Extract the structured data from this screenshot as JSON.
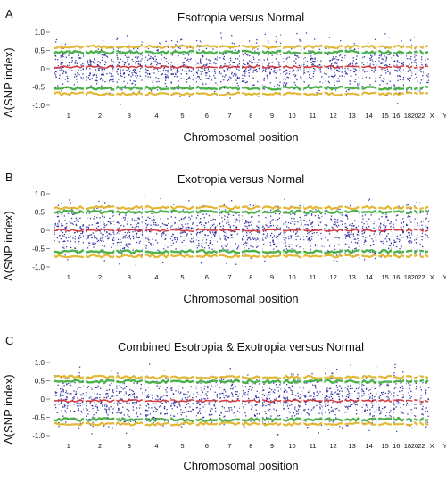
{
  "chart_data": [
    {
      "type": "scatter",
      "panel_label": "A",
      "title": "Esotropia versus Normal",
      "xlabel": "Chromosomal position",
      "ylabel": "Δ(SNP index)",
      "ylim": [
        -1.0,
        1.0
      ],
      "yticks": [
        "1.0",
        "0.5",
        "0",
        "-0.5",
        "-1.0"
      ],
      "x_tick_labels": [
        "1",
        "2",
        "3",
        "4",
        "5",
        "6",
        "7",
        "8",
        "9",
        "10",
        "11",
        "12",
        "13",
        "14",
        "15",
        "16",
        "18",
        "20",
        "22",
        "X",
        "Y"
      ],
      "series": [
        {
          "name": "",
          "color": "#1a1a9a",
          "description": "SNP Δ index points"
        },
        {
          "name": "",
          "color": "#d42a2a",
          "description": "mean trend ~0.05"
        },
        {
          "name": "",
          "color": "#3aaa3a",
          "description": "threshold band ±0.45"
        },
        {
          "name": "",
          "color": "#e0b020",
          "description": "threshold band ±0.6"
        }
      ],
      "red_level": 0.05,
      "green_level": 0.45,
      "yellow_level": 0.6
    },
    {
      "type": "scatter",
      "panel_label": "B",
      "title": "Exotropia versus Normal",
      "xlabel": "Chromosomal position",
      "ylabel": "Δ(SNP index)",
      "ylim": [
        -1.0,
        1.0
      ],
      "yticks": [
        "1.0",
        "0.5",
        "0",
        "-0.5",
        "-1.0"
      ],
      "x_tick_labels": [
        "1",
        "2",
        "3",
        "4",
        "5",
        "6",
        "7",
        "8",
        "9",
        "10",
        "11",
        "12",
        "13",
        "14",
        "15",
        "16",
        "18",
        "20",
        "22",
        "X",
        "Y"
      ],
      "series": [
        {
          "name": "",
          "color": "#1a1a9a",
          "description": "SNP Δ index points"
        },
        {
          "name": "",
          "color": "#d42a2a",
          "description": "mean trend ~0.0"
        },
        {
          "name": "",
          "color": "#3aaa3a",
          "description": "threshold band ±0.5"
        },
        {
          "name": "",
          "color": "#e0b020",
          "description": "threshold band ±0.6"
        }
      ],
      "red_level": 0.0,
      "green_level": 0.5,
      "yellow_level": 0.62
    },
    {
      "type": "scatter",
      "panel_label": "C",
      "title": "Combined Esotropia & Exotropia versus Normal",
      "xlabel": "Chromosomal position",
      "ylabel": "Δ(SNP index)",
      "ylim": [
        -1.0,
        1.0
      ],
      "yticks": [
        "1.0",
        "0.5",
        "0",
        "-0.5",
        "-1.0"
      ],
      "x_tick_labels": [
        "1",
        "2",
        "3",
        "4",
        "5",
        "6",
        "7",
        "8",
        "9",
        "10",
        "11",
        "12",
        "13",
        "14",
        "15",
        "16",
        "18",
        "20",
        "22",
        "X",
        "Y"
      ],
      "series": [
        {
          "name": "",
          "color": "#1a1a9a",
          "description": "SNP Δ index points"
        },
        {
          "name": "",
          "color": "#d42a2a",
          "description": "mean trend ~-0.05"
        },
        {
          "name": "",
          "color": "#3aaa3a",
          "description": "threshold band ±0.48"
        },
        {
          "name": "",
          "color": "#e0b020",
          "description": "threshold band ±0.6"
        }
      ],
      "red_level": -0.05,
      "green_level": 0.48,
      "yellow_level": 0.6
    }
  ]
}
